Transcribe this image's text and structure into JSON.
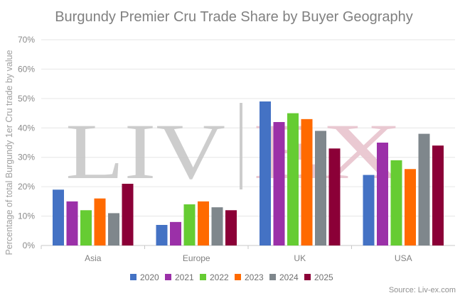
{
  "chart_data": {
    "type": "bar",
    "title": "Burgundy Premier Cru Trade Share by Buyer Geography",
    "ylabel": "Percentage of total Burgundy 1er Cru trade by value",
    "xlabel": "",
    "categories": [
      "Asia",
      "Europe",
      "UK",
      "USA"
    ],
    "ylim": [
      0,
      70
    ],
    "yticks": [
      "0%",
      "10%",
      "20%",
      "30%",
      "40%",
      "50%",
      "60%",
      "70%"
    ],
    "grid": true,
    "legend_position": "bottom",
    "series": [
      {
        "name": "2020",
        "color": "#4472c4",
        "values": [
          19,
          7,
          49,
          24
        ]
      },
      {
        "name": "2021",
        "color": "#9b30a8",
        "values": [
          15,
          8,
          42,
          35
        ]
      },
      {
        "name": "2022",
        "color": "#66cc33",
        "values": [
          12,
          14,
          45,
          29
        ]
      },
      {
        "name": "2023",
        "color": "#ff6a00",
        "values": [
          16,
          15,
          43,
          26
        ]
      },
      {
        "name": "2024",
        "color": "#7f878c",
        "values": [
          11,
          13,
          39,
          38
        ]
      },
      {
        "name": "2025",
        "color": "#8b0037",
        "values": [
          21,
          12,
          33,
          34
        ]
      }
    ],
    "source": "Source: Liv-ex.com",
    "watermark_text": "LIV|EX"
  }
}
